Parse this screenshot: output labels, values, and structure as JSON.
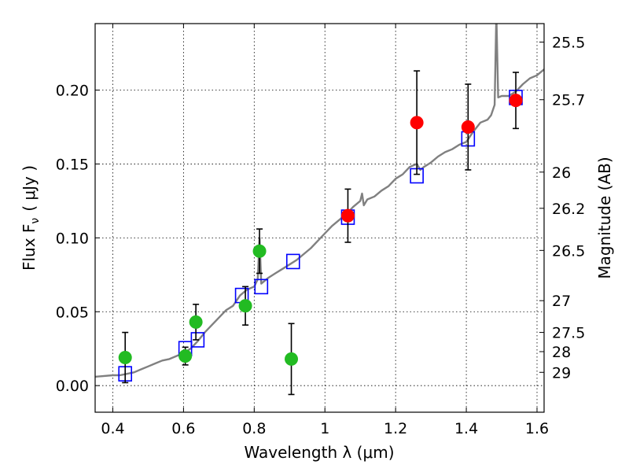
{
  "chart_data": {
    "type": "scatter",
    "xlabel": "Wavelength  λ (μm)",
    "ylabel_left": "Flux  F",
    "ylabel_left_sub": "ν",
    "ylabel_left_unit": "( μJy )",
    "ylabel_right": "Magnitude (AB)",
    "xlim": [
      0.35,
      1.62
    ],
    "ylim": [
      -0.018,
      0.245
    ],
    "x_ticks": [
      {
        "value": 0.4,
        "label": "0.4"
      },
      {
        "value": 0.6,
        "label": "0.6"
      },
      {
        "value": 0.8,
        "label": "0.8"
      },
      {
        "value": 1.0,
        "label": "1"
      },
      {
        "value": 1.2,
        "label": "1.2"
      },
      {
        "value": 1.4,
        "label": "1.4"
      },
      {
        "value": 1.6,
        "label": "1.6"
      }
    ],
    "y_ticks": [
      {
        "value": 0.0,
        "label": "0.00"
      },
      {
        "value": 0.05,
        "label": "0.05"
      },
      {
        "value": 0.1,
        "label": "0.10"
      },
      {
        "value": 0.15,
        "label": "0.15"
      },
      {
        "value": 0.2,
        "label": "0.20"
      }
    ],
    "y2_ticks": [
      {
        "flux": 0.2325,
        "label": "25.5"
      },
      {
        "flux": 0.1935,
        "label": "25.7"
      },
      {
        "flux": 0.1445,
        "label": "26"
      },
      {
        "flux": 0.12,
        "label": "26.2"
      },
      {
        "flux": 0.0915,
        "label": "26.5"
      },
      {
        "flux": 0.0575,
        "label": "27"
      },
      {
        "flux": 0.036,
        "label": "27.5"
      },
      {
        "flux": 0.023,
        "label": "28"
      },
      {
        "flux": 0.009,
        "label": "29"
      }
    ],
    "grid": true,
    "colors": {
      "green": "#22bb22",
      "red": "#ff0000",
      "model_squares": "#0000ff",
      "spectrum": "#808080",
      "errorbars": "#000000"
    },
    "series": [
      {
        "marker": "circle",
        "color": "#22bb22",
        "points": [
          {
            "x": 0.435,
            "y": 0.019,
            "yerr": 0.017
          },
          {
            "x": 0.605,
            "y": 0.02,
            "yerr": 0.006
          },
          {
            "x": 0.635,
            "y": 0.043,
            "yerr": 0.012
          },
          {
            "x": 0.775,
            "y": 0.054,
            "yerr": 0.013
          },
          {
            "x": 0.815,
            "y": 0.091,
            "yerr": 0.015
          },
          {
            "x": 0.905,
            "y": 0.018,
            "yerr": 0.024
          }
        ]
      },
      {
        "marker": "circle",
        "color": "#ff0000",
        "points": [
          {
            "x": 1.065,
            "y": 0.115,
            "yerr": 0.018
          },
          {
            "x": 1.26,
            "y": 0.178,
            "yerr": 0.035
          },
          {
            "x": 1.405,
            "y": 0.175,
            "yerr": 0.029
          },
          {
            "x": 1.54,
            "y": 0.193,
            "yerr": 0.019
          }
        ]
      },
      {
        "marker": "open-square",
        "color": "#0000ff",
        "points": [
          {
            "x": 0.435,
            "y": 0.008
          },
          {
            "x": 0.605,
            "y": 0.025
          },
          {
            "x": 0.64,
            "y": 0.031
          },
          {
            "x": 0.765,
            "y": 0.061
          },
          {
            "x": 0.82,
            "y": 0.067
          },
          {
            "x": 0.91,
            "y": 0.084
          },
          {
            "x": 1.065,
            "y": 0.114
          },
          {
            "x": 1.26,
            "y": 0.142
          },
          {
            "x": 1.405,
            "y": 0.167
          },
          {
            "x": 1.54,
            "y": 0.195
          }
        ]
      },
      {
        "marker": "line",
        "color": "#808080",
        "points": [
          [
            0.35,
            0.006
          ],
          [
            0.4,
            0.007
          ],
          [
            0.42,
            0.007
          ],
          [
            0.44,
            0.008
          ],
          [
            0.46,
            0.009
          ],
          [
            0.48,
            0.011
          ],
          [
            0.5,
            0.013
          ],
          [
            0.52,
            0.015
          ],
          [
            0.54,
            0.017
          ],
          [
            0.56,
            0.018
          ],
          [
            0.58,
            0.02
          ],
          [
            0.6,
            0.022
          ],
          [
            0.62,
            0.025
          ],
          [
            0.64,
            0.03
          ],
          [
            0.66,
            0.036
          ],
          [
            0.68,
            0.041
          ],
          [
            0.7,
            0.046
          ],
          [
            0.72,
            0.051
          ],
          [
            0.74,
            0.054
          ],
          [
            0.76,
            0.061
          ],
          [
            0.78,
            0.065
          ],
          [
            0.8,
            0.067
          ],
          [
            0.81,
            0.072
          ],
          [
            0.815,
            0.1
          ],
          [
            0.82,
            0.069
          ],
          [
            0.84,
            0.073
          ],
          [
            0.86,
            0.076
          ],
          [
            0.88,
            0.079
          ],
          [
            0.9,
            0.082
          ],
          [
            0.92,
            0.085
          ],
          [
            0.94,
            0.089
          ],
          [
            0.96,
            0.093
          ],
          [
            0.98,
            0.098
          ],
          [
            1.0,
            0.103
          ],
          [
            1.02,
            0.108
          ],
          [
            1.04,
            0.112
          ],
          [
            1.06,
            0.116
          ],
          [
            1.08,
            0.121
          ],
          [
            1.1,
            0.125
          ],
          [
            1.105,
            0.13
          ],
          [
            1.11,
            0.122
          ],
          [
            1.12,
            0.126
          ],
          [
            1.14,
            0.128
          ],
          [
            1.16,
            0.132
          ],
          [
            1.18,
            0.135
          ],
          [
            1.2,
            0.14
          ],
          [
            1.22,
            0.143
          ],
          [
            1.24,
            0.148
          ],
          [
            1.26,
            0.15
          ],
          [
            1.27,
            0.146
          ],
          [
            1.28,
            0.148
          ],
          [
            1.3,
            0.151
          ],
          [
            1.32,
            0.155
          ],
          [
            1.34,
            0.158
          ],
          [
            1.36,
            0.16
          ],
          [
            1.38,
            0.163
          ],
          [
            1.4,
            0.165
          ],
          [
            1.42,
            0.172
          ],
          [
            1.44,
            0.178
          ],
          [
            1.46,
            0.18
          ],
          [
            1.47,
            0.183
          ],
          [
            1.48,
            0.19
          ],
          [
            1.485,
            0.252
          ],
          [
            1.49,
            0.195
          ],
          [
            1.5,
            0.196
          ],
          [
            1.52,
            0.196
          ],
          [
            1.54,
            0.199
          ],
          [
            1.56,
            0.204
          ],
          [
            1.58,
            0.208
          ],
          [
            1.6,
            0.21
          ],
          [
            1.62,
            0.214
          ]
        ]
      }
    ]
  }
}
